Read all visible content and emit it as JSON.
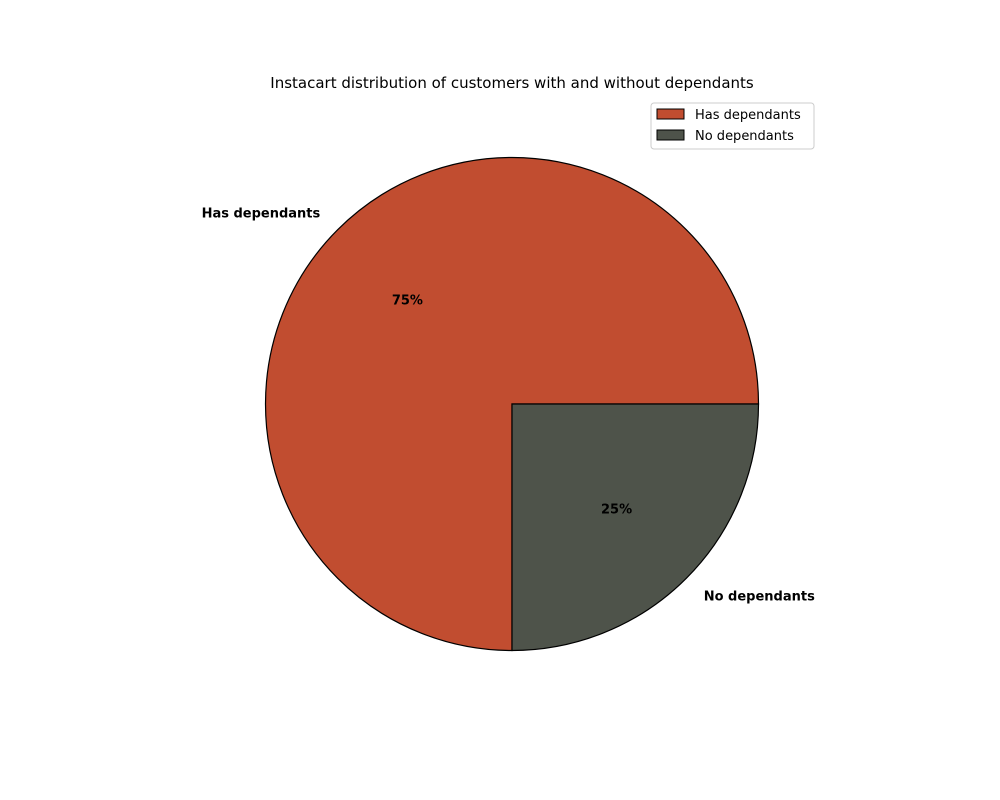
{
  "chart_data": {
    "type": "pie",
    "title": "Instacart distribution of customers with and without dependants",
    "categories": [
      "Has dependants",
      "No dependants"
    ],
    "values": [
      75,
      25
    ],
    "value_labels": [
      "75%",
      "25%"
    ],
    "colors": [
      "#c14d30",
      "#4e534a"
    ],
    "edge_color": "#000000",
    "legend": {
      "placement": "top-right",
      "entries": [
        "Has dependants",
        "No dependants"
      ]
    }
  }
}
